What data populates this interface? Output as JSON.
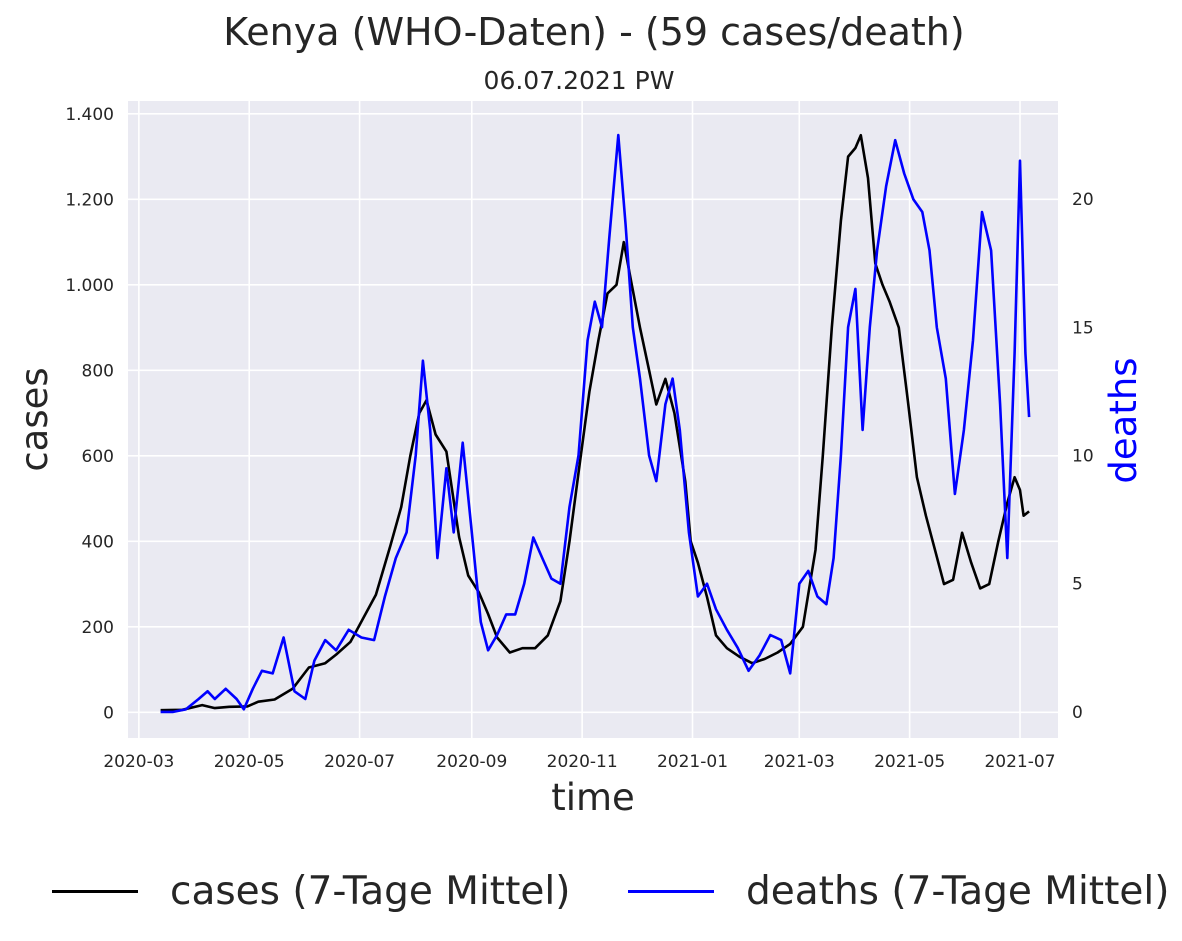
{
  "title": "Kenya (WHO-Daten) - (59 cases/death)",
  "subtitle": "06.07.2021 PW",
  "colors": {
    "cases": "#000000",
    "deaths": "#0000ff",
    "plot_bg": "#eaeaf2",
    "grid": "#ffffff",
    "text": "#262626"
  },
  "chart_data": {
    "type": "line",
    "title": "Kenya (WHO-Daten) - (59 cases/death)",
    "subtitle": "06.07.2021 PW",
    "xlabel": "time",
    "ylabel_left": "cases",
    "ylabel_right": "deaths",
    "x_range": [
      "2020-02-24",
      "2021-07-22"
    ],
    "ylim_left": [
      -60,
      1430
    ],
    "ylim_right": [
      -1.02,
      23.83
    ],
    "x_ticks": [
      {
        "date": "2020-03-01",
        "label": "2020-03"
      },
      {
        "date": "2020-05-01",
        "label": "2020-05"
      },
      {
        "date": "2020-07-01",
        "label": "2020-07"
      },
      {
        "date": "2020-09-01",
        "label": "2020-09"
      },
      {
        "date": "2020-11-01",
        "label": "2020-11"
      },
      {
        "date": "2021-01-01",
        "label": "2021-01"
      },
      {
        "date": "2021-03-01",
        "label": "2021-03"
      },
      {
        "date": "2021-05-01",
        "label": "2021-05"
      },
      {
        "date": "2021-07-01",
        "label": "2021-07"
      }
    ],
    "y_ticks_left": [
      {
        "value": 0,
        "label": "0"
      },
      {
        "value": 200,
        "label": "200"
      },
      {
        "value": 400,
        "label": "400"
      },
      {
        "value": 600,
        "label": "600"
      },
      {
        "value": 800,
        "label": "800"
      },
      {
        "value": 1000,
        "label": "1.000"
      },
      {
        "value": 1200,
        "label": "1.200"
      },
      {
        "value": 1400,
        "label": "1.400"
      }
    ],
    "y_ticks_right": [
      {
        "value": 0,
        "label": "0"
      },
      {
        "value": 5,
        "label": "5"
      },
      {
        "value": 10,
        "label": "10"
      },
      {
        "value": 15,
        "label": "15"
      },
      {
        "value": 20,
        "label": "20"
      }
    ],
    "grid": true,
    "legend_position": "bottom",
    "series": [
      {
        "name": "cases (7-Tage Mittel)",
        "axis": "left",
        "color": "#000000",
        "points": [
          [
            "2020-03-13",
            5
          ],
          [
            "2020-03-25",
            6
          ],
          [
            "2020-04-05",
            17
          ],
          [
            "2020-04-12",
            10
          ],
          [
            "2020-04-20",
            13
          ],
          [
            "2020-04-30",
            14
          ],
          [
            "2020-05-06",
            25
          ],
          [
            "2020-05-15",
            30
          ],
          [
            "2020-05-25",
            55
          ],
          [
            "2020-06-03",
            105
          ],
          [
            "2020-06-12",
            115
          ],
          [
            "2020-06-18",
            135
          ],
          [
            "2020-06-26",
            165
          ],
          [
            "2020-07-03",
            220
          ],
          [
            "2020-07-10",
            275
          ],
          [
            "2020-07-18",
            390
          ],
          [
            "2020-07-24",
            480
          ],
          [
            "2020-07-29",
            600
          ],
          [
            "2020-08-03",
            700
          ],
          [
            "2020-08-07",
            730
          ],
          [
            "2020-08-12",
            650
          ],
          [
            "2020-08-18",
            610
          ],
          [
            "2020-08-25",
            410
          ],
          [
            "2020-08-30",
            320
          ],
          [
            "2020-09-05",
            280
          ],
          [
            "2020-09-10",
            230
          ],
          [
            "2020-09-15",
            175
          ],
          [
            "2020-09-22",
            140
          ],
          [
            "2020-09-29",
            150
          ],
          [
            "2020-10-06",
            150
          ],
          [
            "2020-10-13",
            180
          ],
          [
            "2020-10-20",
            260
          ],
          [
            "2020-10-25",
            400
          ],
          [
            "2020-10-30",
            560
          ],
          [
            "2020-11-05",
            750
          ],
          [
            "2020-11-10",
            870
          ],
          [
            "2020-11-15",
            980
          ],
          [
            "2020-11-20",
            1000
          ],
          [
            "2020-11-24",
            1100
          ],
          [
            "2020-11-28",
            1010
          ],
          [
            "2020-12-03",
            900
          ],
          [
            "2020-12-08",
            800
          ],
          [
            "2020-12-12",
            720
          ],
          [
            "2020-12-17",
            780
          ],
          [
            "2020-12-22",
            700
          ],
          [
            "2020-12-28",
            540
          ],
          [
            "2020-12-31",
            400
          ],
          [
            "2021-01-04",
            350
          ],
          [
            "2021-01-09",
            270
          ],
          [
            "2021-01-14",
            180
          ],
          [
            "2021-01-20",
            150
          ],
          [
            "2021-01-27",
            130
          ],
          [
            "2021-02-03",
            115
          ],
          [
            "2021-02-10",
            125
          ],
          [
            "2021-02-17",
            140
          ],
          [
            "2021-02-24",
            160
          ],
          [
            "2021-03-03",
            200
          ],
          [
            "2021-03-10",
            380
          ],
          [
            "2021-03-14",
            600
          ],
          [
            "2021-03-19",
            900
          ],
          [
            "2021-03-24",
            1150
          ],
          [
            "2021-03-28",
            1300
          ],
          [
            "2021-04-01",
            1320
          ],
          [
            "2021-04-04",
            1350
          ],
          [
            "2021-04-08",
            1250
          ],
          [
            "2021-04-12",
            1050
          ],
          [
            "2021-04-16",
            1000
          ],
          [
            "2021-04-20",
            960
          ],
          [
            "2021-04-25",
            900
          ],
          [
            "2021-04-30",
            730
          ],
          [
            "2021-05-05",
            550
          ],
          [
            "2021-05-10",
            460
          ],
          [
            "2021-05-15",
            380
          ],
          [
            "2021-05-20",
            300
          ],
          [
            "2021-05-25",
            310
          ],
          [
            "2021-05-30",
            420
          ],
          [
            "2021-06-04",
            350
          ],
          [
            "2021-06-09",
            290
          ],
          [
            "2021-06-14",
            300
          ],
          [
            "2021-06-19",
            400
          ],
          [
            "2021-06-24",
            490
          ],
          [
            "2021-06-28",
            550
          ],
          [
            "2021-07-01",
            520
          ],
          [
            "2021-07-03",
            460
          ],
          [
            "2021-07-06",
            470
          ]
        ]
      },
      {
        "name": "deaths (7-Tage Mittel)",
        "axis": "right",
        "color": "#0000ff",
        "points": [
          [
            "2020-03-13",
            0.0
          ],
          [
            "2020-03-20",
            0.0
          ],
          [
            "2020-03-27",
            0.1
          ],
          [
            "2020-04-03",
            0.5
          ],
          [
            "2020-04-08",
            0.8
          ],
          [
            "2020-04-12",
            0.5
          ],
          [
            "2020-04-18",
            0.9
          ],
          [
            "2020-04-24",
            0.5
          ],
          [
            "2020-04-28",
            0.1
          ],
          [
            "2020-05-03",
            0.9
          ],
          [
            "2020-05-08",
            1.6
          ],
          [
            "2020-05-14",
            1.5
          ],
          [
            "2020-05-20",
            2.9
          ],
          [
            "2020-05-26",
            0.8
          ],
          [
            "2020-06-01",
            0.5
          ],
          [
            "2020-06-06",
            2.0
          ],
          [
            "2020-06-12",
            2.8
          ],
          [
            "2020-06-18",
            2.4
          ],
          [
            "2020-06-25",
            3.2
          ],
          [
            "2020-07-02",
            2.9
          ],
          [
            "2020-07-09",
            2.8
          ],
          [
            "2020-07-15",
            4.5
          ],
          [
            "2020-07-21",
            6.0
          ],
          [
            "2020-07-27",
            7.0
          ],
          [
            "2020-08-01",
            10.0
          ],
          [
            "2020-08-05",
            13.7
          ],
          [
            "2020-08-09",
            11.0
          ],
          [
            "2020-08-13",
            6.0
          ],
          [
            "2020-08-18",
            9.5
          ],
          [
            "2020-08-22",
            7.0
          ],
          [
            "2020-08-27",
            10.5
          ],
          [
            "2020-09-01",
            7.0
          ],
          [
            "2020-09-06",
            3.5
          ],
          [
            "2020-09-10",
            2.4
          ],
          [
            "2020-09-15",
            3.0
          ],
          [
            "2020-09-20",
            3.8
          ],
          [
            "2020-09-25",
            3.8
          ],
          [
            "2020-09-30",
            5.0
          ],
          [
            "2020-10-05",
            6.8
          ],
          [
            "2020-10-10",
            6.0
          ],
          [
            "2020-10-15",
            5.2
          ],
          [
            "2020-10-20",
            5.0
          ],
          [
            "2020-10-25",
            8.0
          ],
          [
            "2020-10-30",
            10.0
          ],
          [
            "2020-11-04",
            14.5
          ],
          [
            "2020-11-08",
            16.0
          ],
          [
            "2020-11-12",
            15.0
          ],
          [
            "2020-11-16",
            18.5
          ],
          [
            "2020-11-21",
            22.5
          ],
          [
            "2020-11-25",
            19.0
          ],
          [
            "2020-11-29",
            15.0
          ],
          [
            "2020-12-03",
            13.0
          ],
          [
            "2020-12-08",
            10.0
          ],
          [
            "2020-12-12",
            9.0
          ],
          [
            "2020-12-17",
            12.0
          ],
          [
            "2020-12-21",
            13.0
          ],
          [
            "2020-12-25",
            11.0
          ],
          [
            "2020-12-30",
            7.0
          ],
          [
            "2021-01-04",
            4.5
          ],
          [
            "2021-01-09",
            5.0
          ],
          [
            "2021-01-14",
            4.0
          ],
          [
            "2021-01-20",
            3.2
          ],
          [
            "2021-01-26",
            2.5
          ],
          [
            "2021-02-01",
            1.6
          ],
          [
            "2021-02-07",
            2.2
          ],
          [
            "2021-02-13",
            3.0
          ],
          [
            "2021-02-19",
            2.8
          ],
          [
            "2021-02-24",
            1.5
          ],
          [
            "2021-03-01",
            5.0
          ],
          [
            "2021-03-06",
            5.5
          ],
          [
            "2021-03-11",
            4.5
          ],
          [
            "2021-03-16",
            4.2
          ],
          [
            "2021-03-20",
            6.0
          ],
          [
            "2021-03-24",
            10.0
          ],
          [
            "2021-03-28",
            15.0
          ],
          [
            "2021-04-01",
            16.5
          ],
          [
            "2021-04-05",
            11.0
          ],
          [
            "2021-04-09",
            15.0
          ],
          [
            "2021-04-13",
            18.0
          ],
          [
            "2021-04-18",
            20.5
          ],
          [
            "2021-04-23",
            22.3
          ],
          [
            "2021-04-28",
            21.0
          ],
          [
            "2021-05-03",
            20.0
          ],
          [
            "2021-05-08",
            19.5
          ],
          [
            "2021-05-12",
            18.0
          ],
          [
            "2021-05-16",
            15.0
          ],
          [
            "2021-05-21",
            13.0
          ],
          [
            "2021-05-26",
            8.5
          ],
          [
            "2021-05-31",
            11.0
          ],
          [
            "2021-06-05",
            14.5
          ],
          [
            "2021-06-10",
            19.5
          ],
          [
            "2021-06-15",
            18.0
          ],
          [
            "2021-06-20",
            12.0
          ],
          [
            "2021-06-24",
            6.0
          ],
          [
            "2021-06-28",
            14.0
          ],
          [
            "2021-07-01",
            21.5
          ],
          [
            "2021-07-04",
            14.0
          ],
          [
            "2021-07-06",
            11.5
          ]
        ]
      }
    ]
  }
}
